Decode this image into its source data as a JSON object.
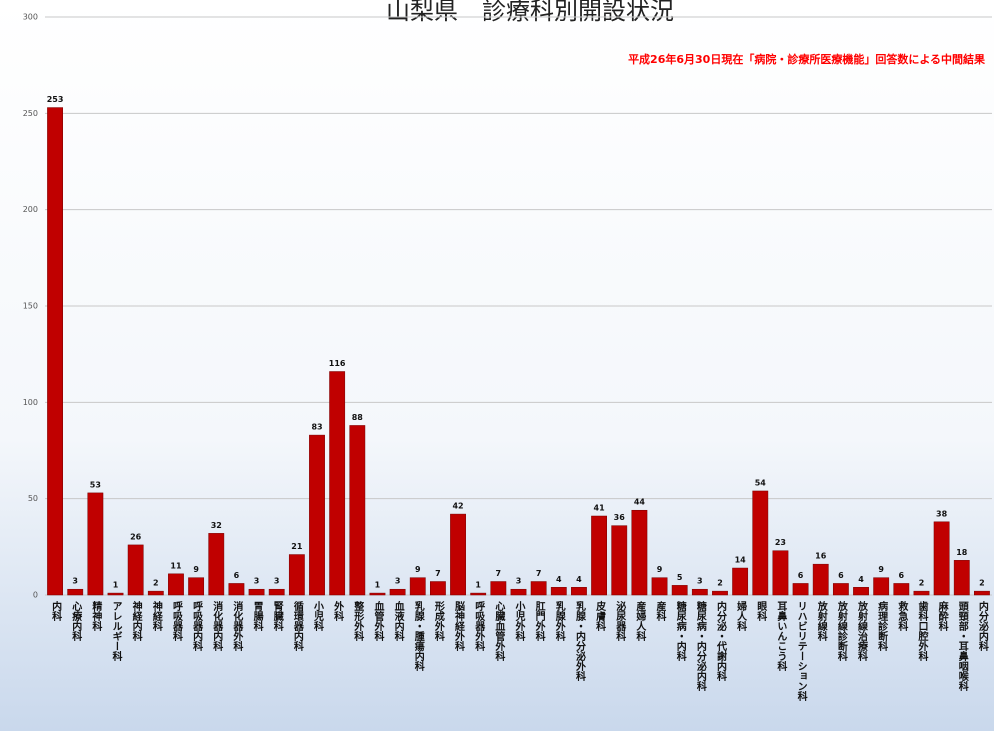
{
  "chart_data": {
    "type": "bar",
    "title": "山梨県　診療科別開設状況",
    "subtitle": "平成26年6月30日現在「病院・診療所医療機能」回答数による中間結果",
    "categories": [
      "内科",
      "心療内科",
      "精神科",
      "アレルギー科",
      "神経内科",
      "神経科",
      "呼吸器科",
      "呼吸器内科",
      "消化器内科",
      "消化器外科",
      "胃腸科",
      "腎臓科",
      "循環器内科",
      "小児科",
      "外科",
      "整形外科",
      "血管外科",
      "血液内科",
      "乳腺・腫瘍内科",
      "形成外科",
      "脳神経外科",
      "呼吸器外科",
      "心臓血管外科",
      "小児外科",
      "肛門外科",
      "乳腺外科",
      "乳腺・内分泌外科",
      "皮膚科",
      "泌尿器科",
      "産婦人科",
      "産科",
      "糖尿病・内科",
      "糖尿病・内分泌内科",
      "内分泌・代謝内科",
      "婦人科",
      "眼科",
      "耳鼻いんこう科",
      "リハビリテーション科",
      "放射線科",
      "放射線診断科",
      "放射線治療科",
      "病理診断科",
      "救急科",
      "歯科口腔外科",
      "麻酔科",
      "頭頸部・耳鼻咽喉科",
      "内分泌内科"
    ],
    "values": [
      253,
      3,
      53,
      1,
      26,
      2,
      11,
      9,
      32,
      6,
      3,
      3,
      21,
      83,
      116,
      88,
      1,
      3,
      9,
      7,
      42,
      1,
      7,
      3,
      7,
      4,
      4,
      41,
      36,
      44,
      9,
      5,
      3,
      2,
      14,
      54,
      23,
      6,
      16,
      6,
      4,
      9,
      6,
      2,
      38,
      18,
      2
    ],
    "color": "#c00000",
    "ylim": [
      0,
      300
    ],
    "yticks": [
      0,
      50,
      100,
      150,
      200,
      250,
      300
    ],
    "grid": true
  }
}
